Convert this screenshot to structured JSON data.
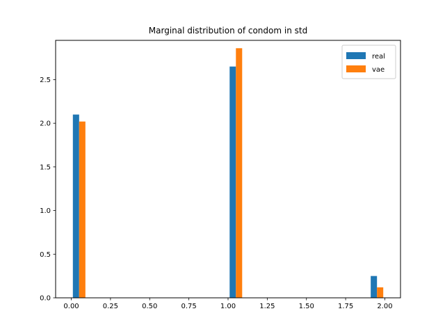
{
  "chart_data": {
    "type": "bar",
    "title": "Marginal distribution of condom in std",
    "xlabel": "",
    "ylabel": "",
    "xlim": [
      -0.1,
      2.1
    ],
    "ylim": [
      0,
      2.95
    ],
    "xticks": [
      "0.00",
      "0.25",
      "0.50",
      "0.75",
      "1.00",
      "1.25",
      "1.50",
      "1.75",
      "2.00"
    ],
    "yticks": [
      "0.0",
      "0.5",
      "1.0",
      "1.5",
      "2.0",
      "2.5"
    ],
    "grid": false,
    "legend_position": "top-right",
    "bin_edges": [
      0.0,
      0.1,
      0.2,
      0.3,
      0.4,
      0.5,
      0.6,
      0.7,
      0.8,
      0.9,
      1.0,
      1.1,
      1.2,
      1.3,
      1.4,
      1.5,
      1.6,
      1.7,
      1.8,
      1.9,
      2.0
    ],
    "series": [
      {
        "name": "real",
        "color": "#1f77b4",
        "values": [
          2.1,
          0,
          0,
          0,
          0,
          0,
          0,
          0,
          0,
          0,
          2.65,
          0,
          0,
          0,
          0,
          0,
          0,
          0,
          0,
          0.25
        ]
      },
      {
        "name": "vae",
        "color": "#ff7f0e",
        "values": [
          2.02,
          0,
          0,
          0,
          0,
          0,
          0,
          0,
          0,
          0,
          2.86,
          0,
          0,
          0,
          0,
          0,
          0,
          0,
          0,
          0.12
        ]
      }
    ]
  }
}
